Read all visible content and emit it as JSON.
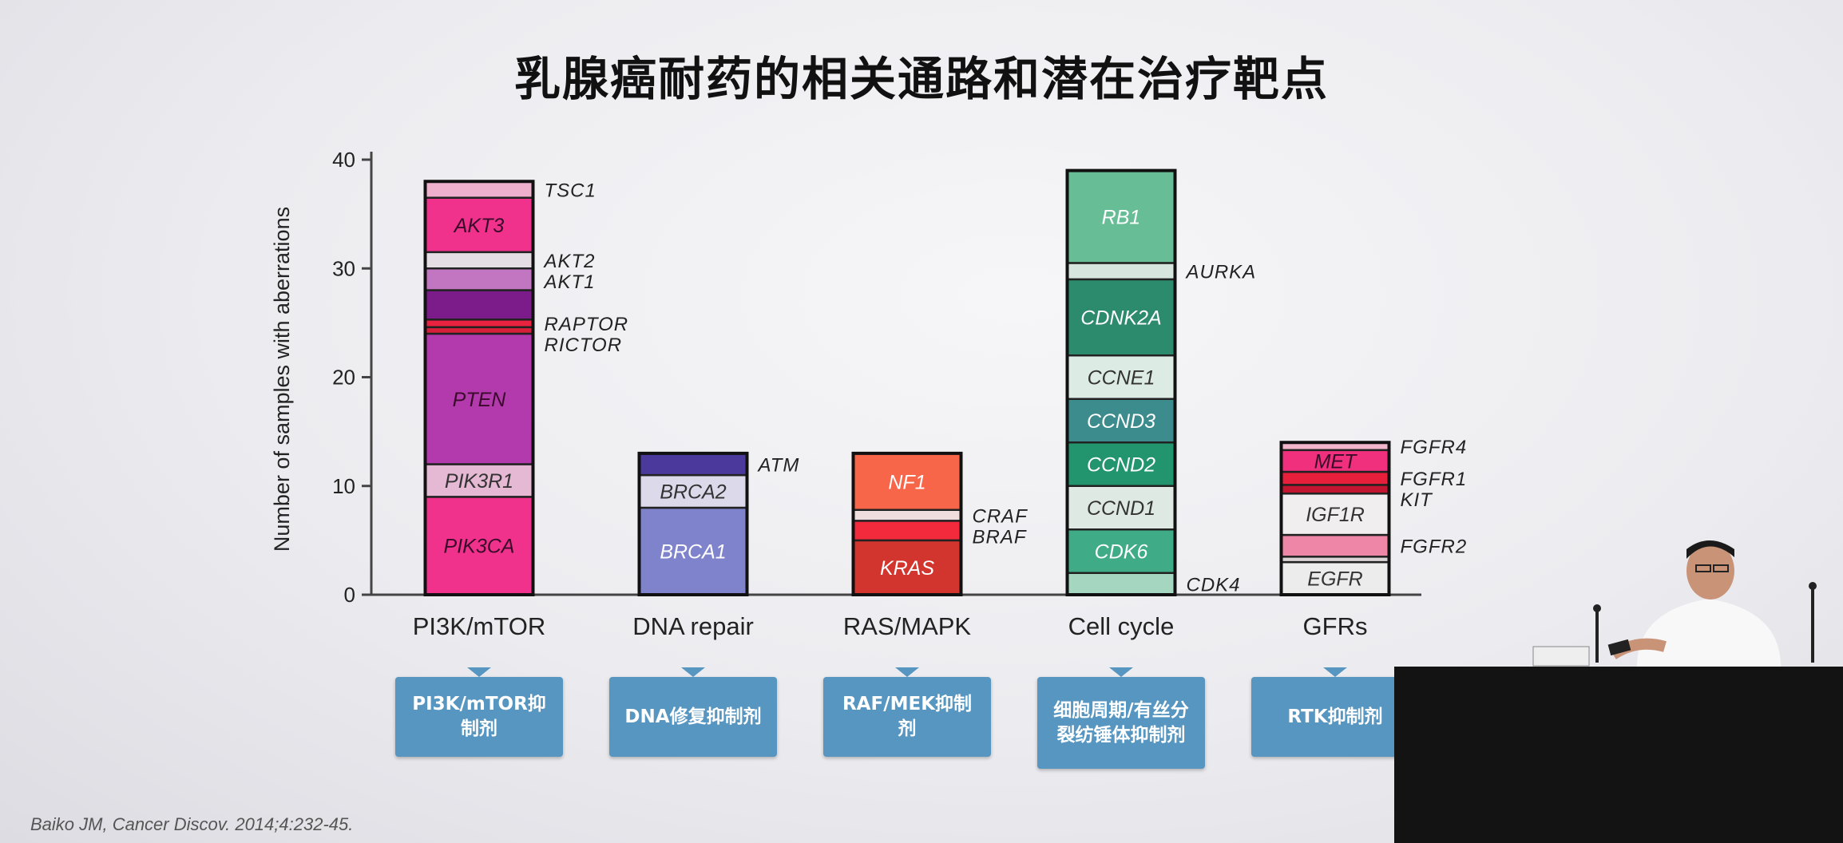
{
  "title": "乳腺癌耐药的相关通路和潜在治疗靶点",
  "citation": "Baiko JM, Cancer Discov. 2014;4:232-45.",
  "chart_data": {
    "type": "bar",
    "stacked": true,
    "ylabel": "Number of samples with aberrations",
    "ylim": [
      0,
      40
    ],
    "yticks": [
      0,
      10,
      20,
      30,
      40
    ],
    "categories": [
      "PI3K/mTOR",
      "DNA repair",
      "RAS/MAPK",
      "Cell cycle",
      "GFRs"
    ],
    "bars": [
      {
        "category": "PI3K/mTOR",
        "segments": [
          {
            "gene": "PIK3CA",
            "value": 9,
            "color": "#f0328c",
            "labeled": "inside"
          },
          {
            "gene": "PIK3R1",
            "value": 3,
            "color": "#e5b8d3",
            "labeled": "inside"
          },
          {
            "gene": "PTEN",
            "value": 12,
            "color": "#b23aac",
            "labeled": "inside"
          },
          {
            "gene": "RICTOR",
            "value": 0.6,
            "color": "#d81f3a",
            "labeled": "outside"
          },
          {
            "gene": "RAPTOR",
            "value": 0.7,
            "color": "#e8223f",
            "labeled": "outside"
          },
          {
            "gene": "",
            "value": 2.7,
            "color": "#7b1c8a",
            "labeled": "none"
          },
          {
            "gene": "AKT1",
            "value": 2,
            "color": "#c276c1",
            "labeled": "outside"
          },
          {
            "gene": "AKT2",
            "value": 1.5,
            "color": "#e4dde4",
            "labeled": "outside"
          },
          {
            "gene": "AKT3",
            "value": 5,
            "color": "#f0328c",
            "labeled": "inside"
          },
          {
            "gene": "TSC1",
            "value": 1.5,
            "color": "#efb0ce",
            "labeled": "outside"
          }
        ]
      },
      {
        "category": "DNA repair",
        "segments": [
          {
            "gene": "BRCA1",
            "value": 8,
            "color": "#7f83cc",
            "labeled": "inside"
          },
          {
            "gene": "BRCA2",
            "value": 3,
            "color": "#dcdaea",
            "labeled": "inside"
          },
          {
            "gene": "ATM",
            "value": 2,
            "color": "#4b3a9b",
            "labeled": "outside"
          }
        ]
      },
      {
        "category": "RAS/MAPK",
        "segments": [
          {
            "gene": "KRAS",
            "value": 5,
            "color": "#d2342e",
            "labeled": "inside"
          },
          {
            "gene": "BRAF",
            "value": 1.8,
            "color": "#f22a3c",
            "labeled": "outside"
          },
          {
            "gene": "CRAF",
            "value": 1,
            "color": "#efdcdc",
            "labeled": "outside"
          },
          {
            "gene": "NF1",
            "value": 5.2,
            "color": "#f8664a",
            "labeled": "inside"
          }
        ]
      },
      {
        "category": "Cell cycle",
        "segments": [
          {
            "gene": "CDK4",
            "value": 2,
            "color": "#a5d6bf",
            "labeled": "outside"
          },
          {
            "gene": "CDK6",
            "value": 4,
            "color": "#3fab87",
            "labeled": "inside"
          },
          {
            "gene": "CCND1",
            "value": 4,
            "color": "#dee9e3",
            "labeled": "inside"
          },
          {
            "gene": "CCND2",
            "value": 4,
            "color": "#22956f",
            "labeled": "inside"
          },
          {
            "gene": "CCND3",
            "value": 4,
            "color": "#3d8c8d",
            "labeled": "inside"
          },
          {
            "gene": "CCNE1",
            "value": 4,
            "color": "#dcebe4",
            "labeled": "inside"
          },
          {
            "gene": "CDNK2A",
            "value": 7,
            "color": "#2c8a6d",
            "labeled": "inside"
          },
          {
            "gene": "AURKA",
            "value": 1.5,
            "color": "#d6e6de",
            "labeled": "outside"
          },
          {
            "gene": "RB1",
            "value": 8.5,
            "color": "#67bd96",
            "labeled": "inside"
          }
        ]
      },
      {
        "category": "GFRs",
        "segments": [
          {
            "gene": "EGFR",
            "value": 3,
            "color": "#ececec",
            "labeled": "inside"
          },
          {
            "gene": "",
            "value": 0.5,
            "color": "#dad4d6",
            "labeled": "none"
          },
          {
            "gene": "FGFR2",
            "value": 2,
            "color": "#ee86a8",
            "labeled": "outside"
          },
          {
            "gene": "IGF1R",
            "value": 3.8,
            "color": "#f1eef0",
            "labeled": "inside"
          },
          {
            "gene": "KIT",
            "value": 0.8,
            "color": "#c21530",
            "labeled": "outside"
          },
          {
            "gene": "FGFR1",
            "value": 1.2,
            "color": "#e81f3b",
            "labeled": "outside"
          },
          {
            "gene": "MET",
            "value": 2,
            "color": "#f0307d",
            "labeled": "inside"
          },
          {
            "gene": "FGFR4",
            "value": 0.7,
            "color": "#f2b6cc",
            "labeled": "outside"
          }
        ]
      }
    ]
  },
  "therapies": [
    {
      "category": "PI3K/mTOR",
      "label": "PI3K/mTOR抑制剂"
    },
    {
      "category": "DNA repair",
      "label": "DNA修复抑制剂"
    },
    {
      "category": "RAS/MAPK",
      "label": "RAF/MEK抑制剂"
    },
    {
      "category": "Cell cycle",
      "label": "细胞周期/有丝分裂纺锤体抑制剂"
    },
    {
      "category": "GFRs",
      "label": "RTK抑制剂"
    }
  ]
}
